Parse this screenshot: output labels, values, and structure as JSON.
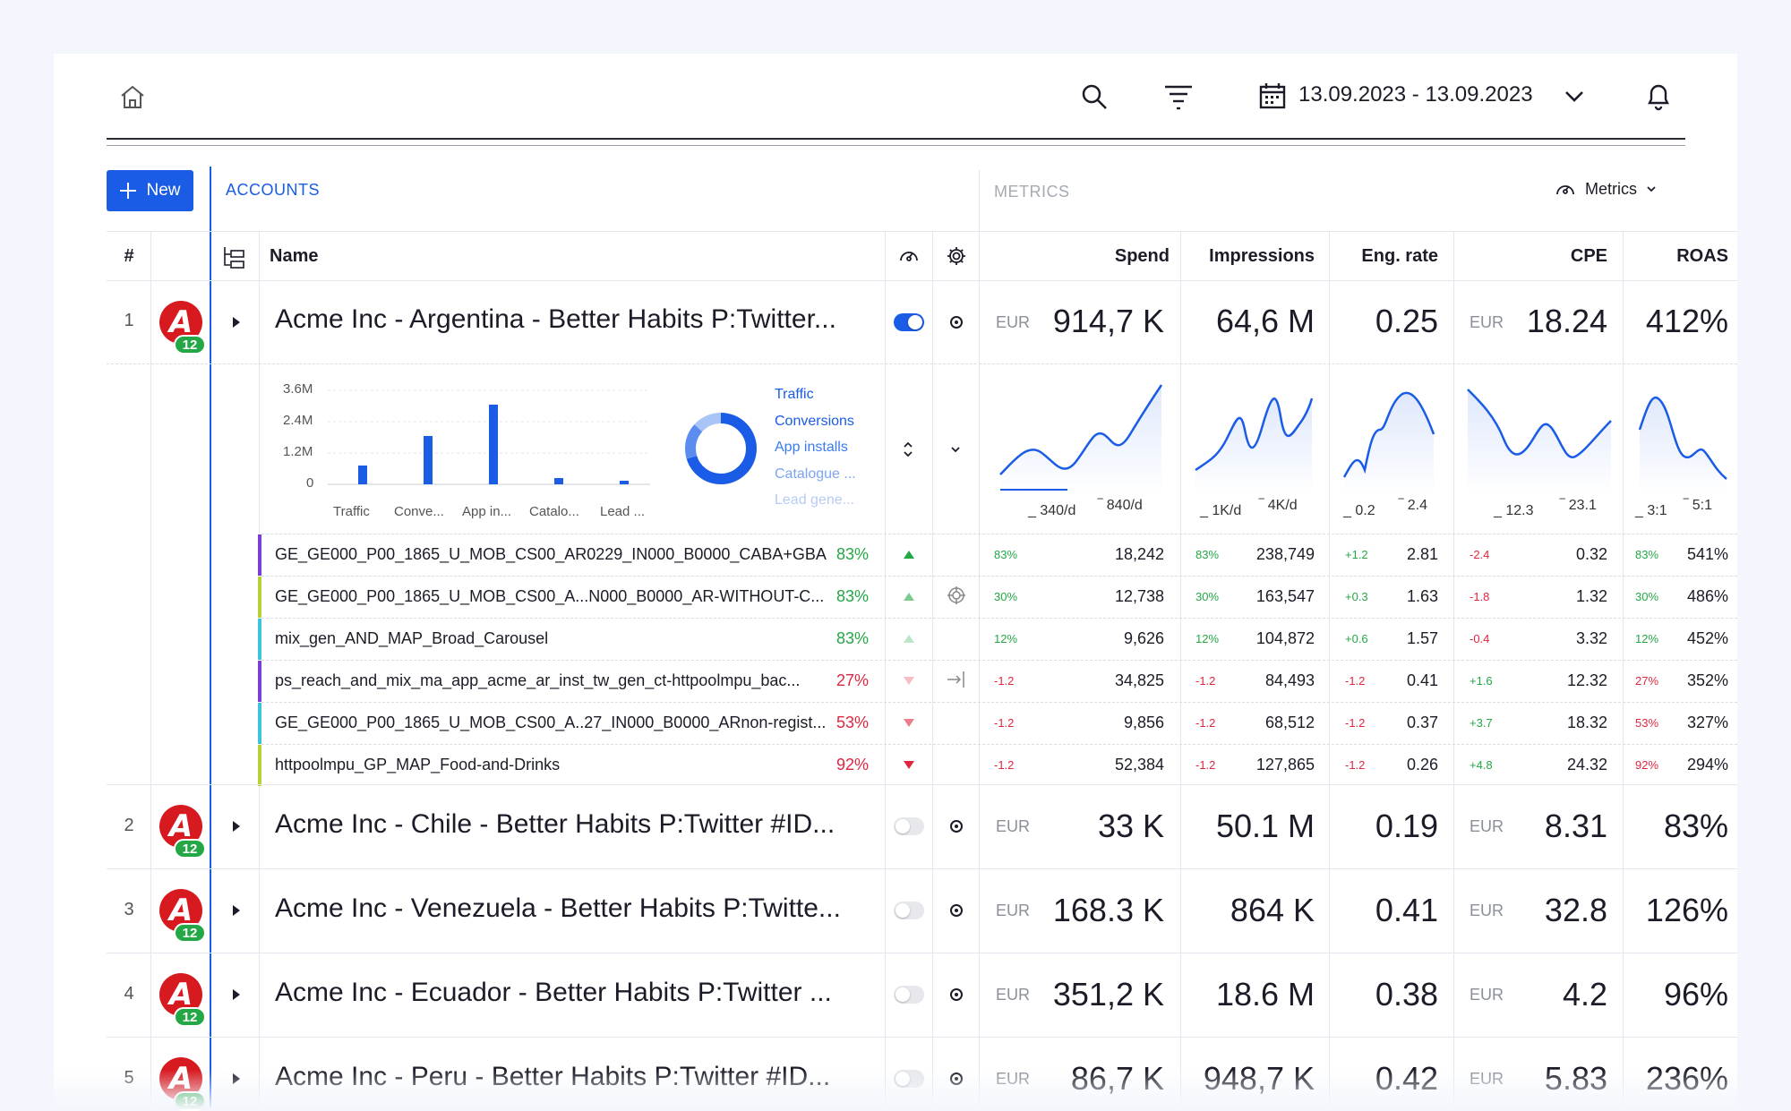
{
  "header": {
    "date_range": "13.09.2023 - 13.09.2023",
    "icons": [
      "home-icon",
      "search-icon",
      "filter-icon",
      "calendar-icon",
      "chevron-down-icon",
      "bell-icon"
    ]
  },
  "toolbar": {
    "new_label": "New",
    "accounts_label": "ACCOUNTS",
    "metrics_section_label": "METRICS",
    "metrics_button_label": "Metrics"
  },
  "columns": {
    "num": "#",
    "name": "Name",
    "spend": "Spend",
    "impressions": "Impressions",
    "eng_rate": "Eng. rate",
    "cpe": "CPE",
    "roas": "ROAS"
  },
  "rows": [
    {
      "num": "1",
      "name": "Acme Inc - Argentina - Better Habits P:Twitter...",
      "badge": "12",
      "active": true,
      "spend_cur": "EUR",
      "spend": "914,7 K",
      "impressions": "64,6 M",
      "eng_rate": "0.25",
      "cpe_cur": "EUR",
      "cpe": "18.24",
      "roas": "412%"
    },
    {
      "num": "2",
      "name": "Acme Inc - Chile - Better Habits P:Twitter #ID...",
      "badge": "12",
      "active": false,
      "spend_cur": "EUR",
      "spend": "33 K",
      "impressions": "50.1 M",
      "eng_rate": "0.19",
      "cpe_cur": "EUR",
      "cpe": "8.31",
      "roas": "83%"
    },
    {
      "num": "3",
      "name": "Acme Inc - Venezuela - Better Habits P:Twitte...",
      "badge": "12",
      "active": false,
      "spend_cur": "EUR",
      "spend": "168.3 K",
      "impressions": "864 K",
      "eng_rate": "0.41",
      "cpe_cur": "EUR",
      "cpe": "32.8",
      "roas": "126%"
    },
    {
      "num": "4",
      "name": "Acme Inc - Ecuador - Better Habits P:Twitter ...",
      "badge": "12",
      "active": false,
      "spend_cur": "EUR",
      "spend": "351,2 K",
      "impressions": "18.6 M",
      "eng_rate": "0.38",
      "cpe_cur": "EUR",
      "cpe": "4.2",
      "roas": "96%"
    },
    {
      "num": "5",
      "name": "Acme Inc - Peru - Better Habits P:Twitter #ID...",
      "badge": "12",
      "active": false,
      "spend_cur": "EUR",
      "spend": "86,7 K",
      "impressions": "948,7 K",
      "eng_rate": "0.42",
      "cpe_cur": "EUR",
      "cpe": "5.83",
      "roas": "236%"
    }
  ],
  "expanded": {
    "bar_chart": {
      "yticks": [
        "3.6M",
        "2.4M",
        "1.2M",
        "0"
      ],
      "categories": [
        "Traffic",
        "Conve...",
        "App in...",
        "Catalo...",
        "Lead ..."
      ]
    },
    "legend": [
      "Traffic",
      "Conversions",
      "App installs",
      "Catalogue ...",
      "Lead gene..."
    ],
    "sparks": [
      {
        "low": "340/d",
        "high": "840/d"
      },
      {
        "low": "1K/d",
        "high": "4K/d"
      },
      {
        "low": "0.2",
        "high": "2.4"
      },
      {
        "low": "12.3",
        "high": "23.1"
      },
      {
        "low": "3:1",
        "high": "5:1"
      }
    ],
    "subrows": [
      {
        "name": "GE_GE000_P00_1865_U_MOB_CS00_AR0229_IN000_B0000_CABA+GBA",
        "pct": "83%",
        "color": "#7b3fd6",
        "pct_color": "green",
        "trend": "up",
        "spend_d": "83%",
        "spend": "18,242",
        "imp_d": "83%",
        "imp": "238,749",
        "eng_d": "+1.2",
        "eng": "2.81",
        "cpe_d": "-2.4",
        "cpe": "0.32",
        "roas_d": "83%",
        "roas": "541%"
      },
      {
        "name": "GE_GE000_P00_1865_U_MOB_CS00_A...N000_B0000_AR-WITHOUT-C...",
        "pct": "83%",
        "color": "#b5d334",
        "pct_color": "green",
        "trend": "up-light",
        "spend_d": "30%",
        "spend": "12,738",
        "imp_d": "30%",
        "imp": "163,547",
        "eng_d": "+0.3",
        "eng": "1.63",
        "cpe_d": "-1.8",
        "cpe": "1.32",
        "roas_d": "30%",
        "roas": "486%"
      },
      {
        "name": "mix_gen_AND_MAP_Broad_Carousel",
        "pct": "83%",
        "color": "#3fc4e0",
        "pct_color": "green",
        "trend": "up-faint",
        "spend_d": "12%",
        "spend": "9,626",
        "imp_d": "12%",
        "imp": "104,872",
        "eng_d": "+0.6",
        "eng": "1.57",
        "cpe_d": "-0.4",
        "cpe": "3.32",
        "roas_d": "12%",
        "roas": "452%"
      },
      {
        "name": "ps_reach_and_mix_ma_app_acme_ar_inst_tw_gen_ct-httpoolmpu_bac...",
        "pct": "27%",
        "color": "#7b3fd6",
        "pct_color": "red",
        "trend": "down-faint",
        "spend_d": "-1.2",
        "spend": "34,825",
        "imp_d": "-1.2",
        "imp": "84,493",
        "eng_d": "-1.2",
        "eng": "0.41",
        "cpe_d": "+1.6",
        "cpe": "12.32",
        "roas_d": "27%",
        "roas": "352%"
      },
      {
        "name": "GE_GE000_P00_1865_U_MOB_CS00_A..27_IN000_B0000_ARnon-regist...",
        "pct": "53%",
        "color": "#3fc4e0",
        "pct_color": "red",
        "trend": "down-light",
        "spend_d": "-1.2",
        "spend": "9,856",
        "imp_d": "-1.2",
        "imp": "68,512",
        "eng_d": "-1.2",
        "eng": "0.37",
        "cpe_d": "+3.7",
        "cpe": "18.32",
        "roas_d": "53%",
        "roas": "327%"
      },
      {
        "name": "httpoolmpu_GP_MAP_Food-and-Drinks",
        "pct": "92%",
        "color": "#b5d334",
        "pct_color": "red",
        "trend": "down",
        "spend_d": "-1.2",
        "spend": "52,384",
        "imp_d": "-1.2",
        "imp": "127,865",
        "eng_d": "-1.2",
        "eng": "0.26",
        "cpe_d": "+4.8",
        "cpe": "24.32",
        "roas_d": "92%",
        "roas": "294%"
      }
    ]
  },
  "colors": {
    "accent": "#1a5ce6",
    "brand_red": "#d71920",
    "badge_green": "#23a845",
    "positive": "#23a845",
    "negative": "#e0263f"
  }
}
